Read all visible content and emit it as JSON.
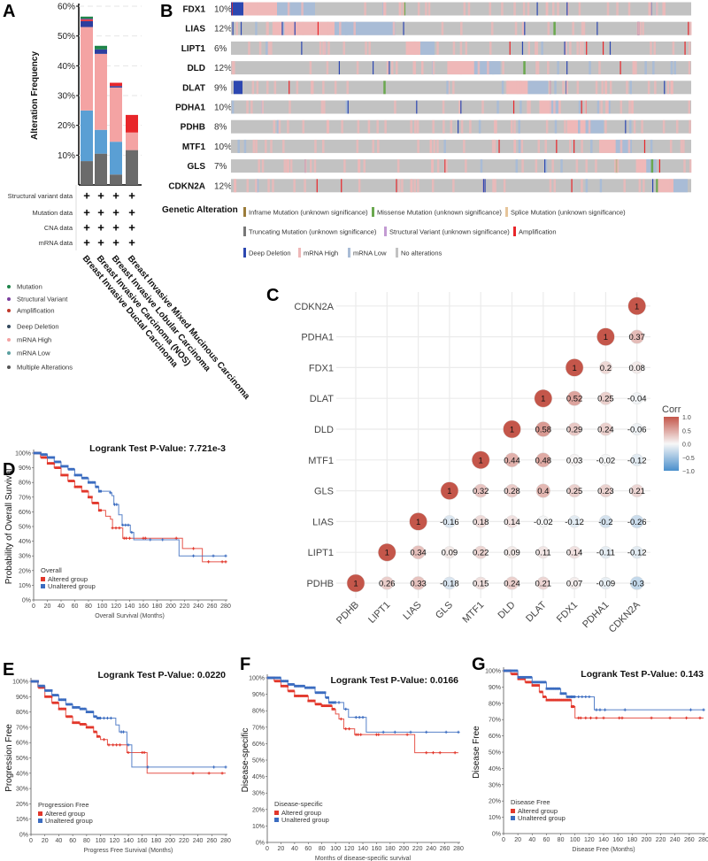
{
  "panels": {
    "a": "A",
    "b": "B",
    "c": "C",
    "d": "D",
    "e": "E",
    "f": "F",
    "g": "G"
  },
  "chart_data": [
    {
      "panel": "A",
      "type": "bar",
      "stacked": true,
      "ylabel": "Alteration Frequency",
      "ylim": [
        0,
        60
      ],
      "yticks": [
        "10%",
        "20%",
        "30%",
        "40%",
        "50%",
        "60%"
      ],
      "categories": [
        "Breast Invasive Ductal Carcinoma",
        "Breast Invasive Carcinoma (NOS)",
        "Breast Invasive Lobular Carcinoma",
        "Breast Invasive Mixed Mucinous Carcinoma"
      ],
      "series": [
        {
          "name": "Multiple Alterations",
          "color": "#6b6b6b",
          "values": [
            8,
            10.5,
            3.5,
            11.7
          ]
        },
        {
          "name": "mRNA Low",
          "color": "#5a9fd4",
          "values": [
            17,
            8,
            11,
            0
          ]
        },
        {
          "name": "mRNA High",
          "color": "#f4a3a3",
          "values": [
            28,
            25.5,
            18.2,
            5.9
          ]
        },
        {
          "name": "Deep Deletion",
          "color": "#2c3e9e",
          "values": [
            2,
            1.5,
            0.5,
            0
          ]
        },
        {
          "name": "Amplification",
          "color": "#e8262a",
          "values": [
            0.5,
            0,
            1.1,
            5.9
          ]
        },
        {
          "name": "Structural Variant",
          "color": "#7b3f9e",
          "values": [
            0.3,
            0,
            0,
            0
          ]
        },
        {
          "name": "Mutation",
          "color": "#1e8449",
          "values": [
            0.7,
            1.2,
            0,
            0
          ]
        }
      ],
      "profile_rows": [
        "Structural variant data",
        "Mutation data",
        "CNA data",
        "mRNA data"
      ],
      "profile_mark": "+",
      "legend": [
        "Mutation",
        "Structural Variant",
        "Amplification",
        "Deep Deletion",
        "mRNA High",
        "mRNA Low",
        "Multiple Alterations"
      ],
      "legend_colors": [
        "#1e8449",
        "#7b3f9e",
        "#c0392b",
        "#34495e",
        "#f4a3a3",
        "#5a9fa0",
        "#555555"
      ]
    },
    {
      "panel": "B",
      "type": "heatmap",
      "genes": [
        {
          "name": "FDX1",
          "pct": "10%"
        },
        {
          "name": "LIAS",
          "pct": "12%"
        },
        {
          "name": "LIPT1",
          "pct": "6%"
        },
        {
          "name": "DLD",
          "pct": "12%"
        },
        {
          "name": "DLAT",
          "pct": "9%"
        },
        {
          "name": "PDHA1",
          "pct": "10%"
        },
        {
          "name": "PDHB",
          "pct": "8%"
        },
        {
          "name": "MTF1",
          "pct": "10%"
        },
        {
          "name": "GLS",
          "pct": "7%"
        },
        {
          "name": "CDKN2A",
          "pct": "12%"
        }
      ],
      "legend_title": "Genetic Alteration",
      "legend": [
        {
          "label": "Inframe Mutation (unknown significance)",
          "color": "#9b7c3a"
        },
        {
          "label": "Missense Mutation (unknown significance)",
          "color": "#6aa84f"
        },
        {
          "label": "Splice Mutation (unknown significance)",
          "color": "#e6c59a"
        },
        {
          "label": "Truncating Mutation (unknown significance)",
          "color": "#777777"
        },
        {
          "label": "Structural Variant (unknown significance)",
          "color": "#c39bd3"
        },
        {
          "label": "Amplification",
          "color": "#e8262a"
        },
        {
          "label": "Deep Deletion",
          "color": "#2c47b0"
        },
        {
          "label": "mRNA High",
          "color": "#efb8b8"
        },
        {
          "label": "mRNA Low",
          "color": "#a9bcd6"
        },
        {
          "label": "No alterations",
          "color": "#c2c2c2"
        }
      ]
    },
    {
      "panel": "C",
      "type": "heatmap",
      "genes": [
        "PDHB",
        "LIPT1",
        "LIAS",
        "GLS",
        "MTF1",
        "DLD",
        "DLAT",
        "FDX1",
        "PDHA1",
        "CDKN2A"
      ],
      "values_by_row": {
        "PDHB": [
          "1",
          "0.26",
          "0.33",
          "-0.18",
          "0.15",
          "0.24",
          "0.21",
          "0.07",
          "-0.09",
          "-0.3"
        ],
        "LIPT1": [
          null,
          "1",
          "0.34",
          "0.09",
          "0.22",
          "0.09",
          "0.11",
          "0.14",
          "-0.11",
          "-0.12"
        ],
        "LIAS": [
          null,
          null,
          "1",
          "-0.16",
          "0.18",
          "0.14",
          "-0.02",
          "-0.12",
          "-0.2",
          "-0.26"
        ],
        "GLS": [
          null,
          null,
          null,
          "1",
          "0.32",
          "0.28",
          "0.4",
          "0.25",
          "0.23",
          "0.21"
        ],
        "MTF1": [
          null,
          null,
          null,
          null,
          "1",
          "0.44",
          "0.48",
          "0.03",
          "-0.02",
          "-0.12"
        ],
        "DLD": [
          null,
          null,
          null,
          null,
          null,
          "1",
          "0.58",
          "0.29",
          "0.24",
          "-0.06"
        ],
        "DLAT": [
          null,
          null,
          null,
          null,
          null,
          null,
          "1",
          "0.52",
          "0.25",
          "-0.04"
        ],
        "FDX1": [
          null,
          null,
          null,
          null,
          null,
          null,
          null,
          "1",
          "0.2",
          "0.08"
        ],
        "PDHA1": [
          null,
          null,
          null,
          null,
          null,
          null,
          null,
          null,
          "1",
          "0.37"
        ],
        "CDKN2A": [
          null,
          null,
          null,
          null,
          null,
          null,
          null,
          null,
          null,
          "1"
        ]
      },
      "colorbar": {
        "title": "Corr",
        "ticks": [
          "1.0",
          "0.5",
          "0.0",
          "−0.5",
          "−1.0"
        ],
        "pos_color": "#c4564a",
        "neg_color": "#4a8fcc"
      }
    },
    {
      "panel": "D",
      "type": "line",
      "title": "Logrank Test P-Value: 7.721e-3",
      "ylabel": "Probability of Overall Survival",
      "xlabel": "Overall Survival (Months)",
      "xlim": [
        0,
        280
      ],
      "ylim": [
        0,
        100
      ],
      "legend_title": "Overall",
      "series": [
        {
          "name": "Altered group",
          "color": "#e2372b",
          "points": [
            [
              0,
              100
            ],
            [
              10,
              97
            ],
            [
              20,
              93
            ],
            [
              30,
              90
            ],
            [
              40,
              85
            ],
            [
              50,
              81
            ],
            [
              60,
              77
            ],
            [
              70,
              74
            ],
            [
              80,
              70
            ],
            [
              85,
              66
            ],
            [
              95,
              61
            ],
            [
              105,
              57
            ],
            [
              112,
              55
            ],
            [
              115,
              49
            ],
            [
              128,
              49
            ],
            [
              130,
              42
            ],
            [
              165,
              42
            ],
            [
              215,
              42
            ],
            [
              217,
              35
            ],
            [
              245,
              35
            ],
            [
              246,
              26
            ],
            [
              280,
              26
            ]
          ],
          "censored": [
            115,
            120,
            125,
            132,
            135,
            140,
            160,
            163,
            208,
            233,
            255,
            275,
            280
          ]
        },
        {
          "name": "Unaltered group",
          "color": "#3b6cc0",
          "points": [
            [
              0,
              100
            ],
            [
              10,
              99
            ],
            [
              20,
              97
            ],
            [
              30,
              94
            ],
            [
              40,
              91
            ],
            [
              50,
              89
            ],
            [
              60,
              85
            ],
            [
              70,
              83
            ],
            [
              80,
              80
            ],
            [
              90,
              77
            ],
            [
              95,
              74
            ],
            [
              112,
              73
            ],
            [
              114,
              71
            ],
            [
              117,
              65
            ],
            [
              123,
              65
            ],
            [
              124,
              58
            ],
            [
              128,
              58
            ],
            [
              129,
              51
            ],
            [
              140,
              51
            ],
            [
              141,
              46
            ],
            [
              145,
              46
            ],
            [
              146,
              41
            ],
            [
              210,
              41
            ],
            [
              212,
              30
            ],
            [
              280,
              30
            ]
          ],
          "censored": [
            112,
            118,
            121,
            130,
            134,
            138,
            143,
            170,
            188,
            233,
            262,
            280
          ]
        }
      ]
    },
    {
      "panel": "E",
      "type": "line",
      "title": "Logrank Test P-Value: 0.0220",
      "ylabel": "Progression Free",
      "xlabel": "Progress Free Survival (Months)",
      "xlim": [
        0,
        280
      ],
      "ylim": [
        0,
        100
      ],
      "legend_title": "Progression Free",
      "series": [
        {
          "name": "Altered group",
          "color": "#e2372b",
          "points": [
            [
              0,
              100
            ],
            [
              10,
              96
            ],
            [
              20,
              90
            ],
            [
              30,
              86
            ],
            [
              40,
              82
            ],
            [
              50,
              77
            ],
            [
              60,
              73
            ],
            [
              70,
              72
            ],
            [
              80,
              70
            ],
            [
              90,
              67
            ],
            [
              95,
              64
            ],
            [
              100,
              62
            ],
            [
              108,
              62
            ],
            [
              110,
              58.5
            ],
            [
              137,
              58.5
            ],
            [
              138,
              53.5
            ],
            [
              165,
              53.5
            ],
            [
              167,
              40
            ],
            [
              280,
              40
            ]
          ],
          "censored": [
            105,
            112,
            118,
            123,
            128,
            140,
            160,
            163,
            233,
            256,
            275
          ]
        },
        {
          "name": "Unaltered group",
          "color": "#3b6cc0",
          "points": [
            [
              0,
              100
            ],
            [
              10,
              97
            ],
            [
              20,
              94
            ],
            [
              30,
              91
            ],
            [
              40,
              88
            ],
            [
              50,
              85
            ],
            [
              60,
              83
            ],
            [
              70,
              82
            ],
            [
              80,
              80
            ],
            [
              90,
              77
            ],
            [
              95,
              76
            ],
            [
              120,
              76
            ],
            [
              122,
              71.5
            ],
            [
              127,
              67
            ],
            [
              135,
              67
            ],
            [
              138,
              58.5
            ],
            [
              141,
              58.5
            ],
            [
              145,
              44
            ],
            [
              280,
              44
            ]
          ],
          "censored": [
            100,
            105,
            110,
            115,
            130,
            133,
            140,
            168,
            263,
            280
          ]
        }
      ]
    },
    {
      "panel": "F",
      "type": "line",
      "title": "Logrank Test P-Value: 0.0166",
      "ylabel": "Disease-specific",
      "xlabel": "Months of disease-specific survival",
      "xlim": [
        0,
        280
      ],
      "ylim": [
        0,
        100
      ],
      "legend_title": "Disease-specific",
      "series": [
        {
          "name": "Altered group",
          "color": "#e2372b",
          "points": [
            [
              0,
              100
            ],
            [
              10,
              98
            ],
            [
              20,
              95
            ],
            [
              30,
              92
            ],
            [
              40,
              89
            ],
            [
              60,
              86
            ],
            [
              70,
              84
            ],
            [
              80,
              83
            ],
            [
              95,
              81
            ],
            [
              100,
              78
            ],
            [
              105,
              75
            ],
            [
              112,
              69
            ],
            [
              125,
              69
            ],
            [
              128,
              65.5
            ],
            [
              215,
              65.5
            ],
            [
              216,
              54.5
            ],
            [
              280,
              54.5
            ]
          ],
          "censored": [
            108,
            115,
            120,
            130,
            133,
            137,
            160,
            163,
            205,
            233,
            243,
            253,
            275
          ]
        },
        {
          "name": "Unaltered group",
          "color": "#3b6cc0",
          "points": [
            [
              0,
              100
            ],
            [
              20,
              98
            ],
            [
              30,
              96
            ],
            [
              40,
              95
            ],
            [
              55,
              94
            ],
            [
              70,
              91
            ],
            [
              85,
              88
            ],
            [
              90,
              85
            ],
            [
              110,
              85
            ],
            [
              112,
              81
            ],
            [
              118,
              81
            ],
            [
              119,
              76
            ],
            [
              142,
              76
            ],
            [
              145,
              67
            ],
            [
              280,
              67
            ]
          ],
          "censored": [
            100,
            105,
            115,
            130,
            135,
            140,
            170,
            187,
            210,
            233,
            262,
            280
          ]
        }
      ]
    },
    {
      "panel": "G",
      "type": "line",
      "title": "Logrank Test P-Value: 0.143",
      "ylabel": "Disease Free",
      "xlabel": "Disease Free (Months)",
      "xlim": [
        0,
        280
      ],
      "ylim": [
        0,
        100
      ],
      "legend_title": "Disease Free",
      "series": [
        {
          "name": "Altered group",
          "color": "#e2372b",
          "points": [
            [
              0,
              100
            ],
            [
              10,
              98
            ],
            [
              20,
              95
            ],
            [
              30,
              93
            ],
            [
              40,
              91
            ],
            [
              50,
              87
            ],
            [
              55,
              84
            ],
            [
              60,
              82
            ],
            [
              90,
              82
            ],
            [
              95,
              78
            ],
            [
              100,
              71
            ],
            [
              280,
              71
            ]
          ],
          "censored": [
            96,
            98,
            105,
            108,
            115,
            122,
            130,
            140,
            162,
            166,
            207,
            233,
            256,
            275
          ]
        },
        {
          "name": "Unaltered group",
          "color": "#3b6cc0",
          "points": [
            [
              0,
              100
            ],
            [
              20,
              96
            ],
            [
              40,
              93
            ],
            [
              60,
              89
            ],
            [
              80,
              86
            ],
            [
              88,
              84
            ],
            [
              125,
              84
            ],
            [
              127,
              76
            ],
            [
              280,
              76
            ]
          ],
          "censored": [
            95,
            100,
            105,
            110,
            115,
            120,
            130,
            135,
            142,
            170,
            262,
            280
          ]
        }
      ]
    }
  ]
}
